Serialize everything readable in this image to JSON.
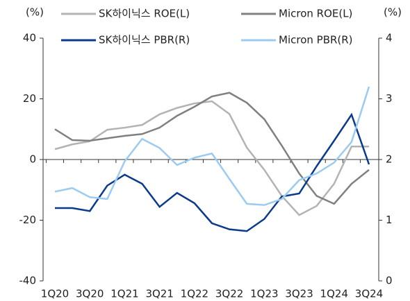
{
  "chart_data": {
    "type": "line",
    "y_label": "(%)",
    "y2_label": "(%)",
    "categories": [
      "1Q20",
      null,
      "3Q20",
      null,
      "1Q21",
      null,
      "3Q21",
      null,
      "1Q22",
      null,
      "3Q22",
      null,
      "1Q23",
      null,
      "3Q23",
      null,
      "1Q24",
      null,
      "3Q24"
    ],
    "ylim": [
      -40,
      40
    ],
    "yticks": [
      -40,
      -20,
      0,
      20,
      40
    ],
    "y2lim": [
      0,
      4
    ],
    "y2ticks": [
      0,
      1,
      2,
      3,
      4
    ],
    "series": [
      {
        "name": "SK하이닉스 ROE(L)",
        "color": "#b3b3b3",
        "values": [
          3.4,
          5,
          6,
          9.8,
          10.5,
          11.4,
          14.9,
          17,
          18.5,
          19.2,
          15,
          3.9,
          -3.4,
          -12,
          -18.3,
          -15.3,
          -8,
          4.3,
          4.3
        ]
      },
      {
        "name": "Micron ROE(L)",
        "color": "#808080",
        "values": [
          10,
          6.4,
          6.2,
          7,
          7.8,
          8.4,
          10.5,
          14.4,
          17.4,
          20.8,
          22,
          18.7,
          13.3,
          4.6,
          -4.6,
          -12,
          -14.6,
          -8,
          -3.4
        ]
      },
      {
        "name": "SK하이닉스 PBR(R)",
        "color": "#0a3a8c",
        "axis": "y2",
        "values": [
          1.2,
          1.2,
          1.15,
          1.57,
          1.75,
          1.6,
          1.22,
          1.45,
          1.28,
          0.95,
          0.85,
          0.82,
          1.02,
          1.39,
          1.44,
          1.89,
          2.31,
          2.74,
          1.92
        ]
      },
      {
        "name": "Micron PBR(R)",
        "color": "#9ccbf2",
        "axis": "y2",
        "values": [
          1.47,
          1.53,
          1.38,
          1.35,
          1.97,
          2.34,
          2.19,
          1.91,
          2.03,
          2.1,
          1.68,
          1.27,
          1.25,
          1.35,
          1.66,
          1.77,
          1.95,
          2.29,
          3.2
        ]
      }
    ]
  }
}
